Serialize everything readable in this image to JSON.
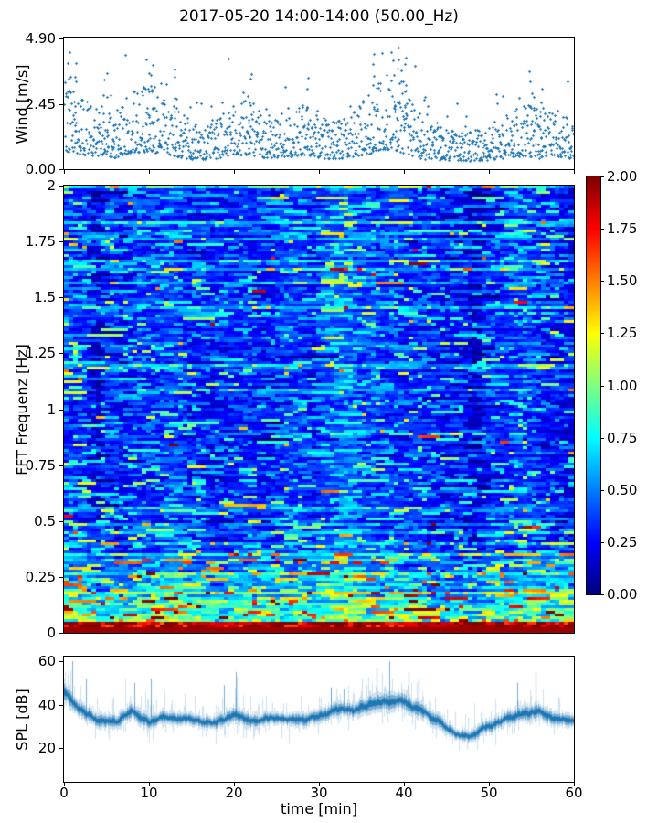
{
  "title": "2017-05-20 14:00-14:00 (50.00_Hz)",
  "colors": {
    "marker": "#1f77b4",
    "line": "#1f77b4",
    "axis": "#000000",
    "background": "#ffffff",
    "colormap": "jet"
  },
  "axes": {
    "x": {
      "label": "time [min]",
      "min": 0,
      "max": 60,
      "tick_labels": [
        "0",
        "10",
        "20",
        "30",
        "40",
        "50",
        "60"
      ],
      "tick_values": [
        0,
        10,
        20,
        30,
        40,
        50,
        60
      ]
    },
    "wind": {
      "label": "Wind [m/s]",
      "min": 0,
      "max": 4.9,
      "tick_labels": [
        "0.00",
        "2.45",
        "4.90"
      ],
      "tick_values": [
        0,
        2.45,
        4.9
      ]
    },
    "freq": {
      "label": "FFT Frequenz [Hz]",
      "min": 0,
      "max": 2,
      "tick_labels": [
        "0",
        "0.25",
        "0.5",
        "0.75",
        "1",
        "1.25",
        "1.5",
        "1.75",
        "2"
      ],
      "tick_values": [
        0,
        0.25,
        0.5,
        0.75,
        1,
        1.25,
        1.5,
        1.75,
        2
      ]
    },
    "spl": {
      "label": "SPL [dB]",
      "value_top": 62.1,
      "value_bottom": 4.6,
      "tick_labels": [
        "20",
        "40",
        "60"
      ],
      "tick_values": [
        20,
        40,
        60
      ]
    },
    "colorbar": {
      "min": 0,
      "max": 2,
      "tick_labels": [
        "0.00",
        "0.25",
        "0.50",
        "0.75",
        "1.00",
        "1.25",
        "1.50",
        "1.75",
        "2.00"
      ],
      "tick_values": [
        0,
        0.25,
        0.5,
        0.75,
        1,
        1.25,
        1.5,
        1.75,
        2
      ]
    }
  },
  "chart_data": [
    {
      "id": "wind",
      "type": "scatter",
      "marker": "plus",
      "color": "#1f77b4",
      "ylabel": "Wind [m/s]",
      "x_range": [
        0,
        60
      ],
      "y_range": [
        0,
        4.9
      ],
      "n_points_approx": 1350,
      "y_max_observed": 4.6,
      "mean_trend": {
        "x": [
          0,
          2,
          4,
          6,
          8,
          10,
          12,
          14,
          16,
          18,
          20,
          22,
          24,
          26,
          28,
          30,
          32,
          34,
          36,
          38,
          40,
          42,
          44,
          46,
          48,
          50,
          52,
          54,
          56,
          58,
          60
        ],
        "mean": [
          2.2,
          1.7,
          1.6,
          1.4,
          2.0,
          2.1,
          1.7,
          1.3,
          1.15,
          1.25,
          1.75,
          1.6,
          1.3,
          1.45,
          1.6,
          1.3,
          1.15,
          1.4,
          1.9,
          2.3,
          1.9,
          1.2,
          1.0,
          1.1,
          1.0,
          1.1,
          1.3,
          1.6,
          1.45,
          1.5,
          1.2
        ]
      },
      "peaks": {
        "x": [
          0.5,
          1.2,
          4.8,
          9.8,
          10.4,
          13.2,
          21.8,
          28.7,
          36.5,
          38.7,
          39.5,
          40.2,
          55.0,
          56.2
        ],
        "value": [
          4.3,
          3.9,
          3.6,
          4.0,
          3.8,
          3.7,
          3.6,
          3.4,
          3.9,
          4.4,
          4.6,
          4.2,
          3.2,
          3.0
        ]
      }
    },
    {
      "id": "spectrogram",
      "type": "heatmap",
      "colormap": "jet",
      "ylabel": "FFT Frequenz [Hz]",
      "x_range": [
        0,
        60
      ],
      "y_range": [
        0,
        2
      ],
      "value_range": [
        0,
        2
      ],
      "grid": {
        "cols": 111,
        "rows": 163
      },
      "structure": {
        "background_mean": 0.4,
        "horizontal_streak_row_fraction": 0.13,
        "low_freq_cutoff_hz": 0.5,
        "bottom_hot_band_hz": 0.05,
        "bottom_hot_band_value": 2.0,
        "dark_column_minutes": [
          3.5,
          6.3,
          29,
          48.5
        ],
        "low_freq_intensity_trend": {
          "x": [
            0,
            3,
            6,
            9,
            12,
            15,
            18,
            21,
            24,
            27,
            30,
            33,
            36,
            39,
            42,
            45,
            48,
            51,
            54,
            57,
            60
          ],
          "amp": [
            1.0,
            0.75,
            0.8,
            0.85,
            0.75,
            0.9,
            0.6,
            0.75,
            0.8,
            0.6,
            0.95,
            0.85,
            0.6,
            1.05,
            0.8,
            0.55,
            0.65,
            0.7,
            0.65,
            0.95,
            1.15
          ]
        }
      }
    },
    {
      "id": "spl",
      "type": "line",
      "color": "#1f77b4",
      "ylabel": "SPL [dB]",
      "x_range": [
        0,
        60
      ],
      "y_max_observed": 60,
      "y_min_observed": 18,
      "mean_trend": {
        "x": [
          0,
          2,
          4,
          6,
          8,
          10,
          12,
          14,
          16,
          18,
          20,
          22,
          24,
          26,
          28,
          30,
          32,
          34,
          36,
          38,
          40,
          42,
          44,
          46,
          48,
          50,
          52,
          54,
          56,
          58,
          60
        ],
        "mean": [
          46,
          38,
          33,
          33,
          39,
          34,
          35,
          33,
          33,
          34,
          37,
          33,
          34,
          33,
          34,
          35,
          38,
          37,
          40,
          41,
          40,
          37,
          33,
          28,
          26,
          30,
          33,
          35,
          36,
          34,
          33
        ]
      },
      "hf_amplitude_trend": {
        "x": [
          0,
          2,
          4,
          6,
          8,
          10,
          12,
          14,
          16,
          18,
          20,
          22,
          24,
          26,
          28,
          30,
          32,
          34,
          36,
          38,
          40,
          42,
          44,
          46,
          48,
          50,
          52,
          54,
          56,
          58,
          60
        ],
        "amp": [
          5,
          4,
          3.5,
          3.5,
          4,
          3.5,
          3.5,
          3,
          3,
          3.5,
          4,
          3.5,
          3,
          3,
          3.5,
          3.5,
          4,
          3.5,
          4.5,
          4.5,
          4.5,
          4,
          3.5,
          3,
          3,
          3.5,
          3.5,
          4,
          4,
          3.5,
          3.5
        ]
      },
      "spikes": {
        "x": [
          1.0,
          2.6,
          8.3,
          10.2,
          18.8,
          20.3,
          31.5,
          33.0,
          36.8,
          38.3,
          40.6,
          41.8,
          53.4,
          55.6
        ],
        "value": [
          60,
          52,
          50,
          52,
          49,
          55,
          48,
          47,
          57,
          60,
          55,
          52,
          50,
          55
        ]
      }
    }
  ]
}
